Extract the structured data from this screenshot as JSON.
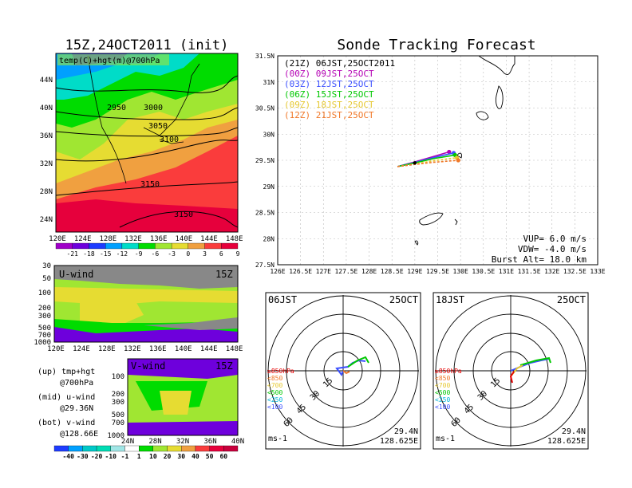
{
  "left_panel": {
    "title": "15Z,24OCT2011 (init)",
    "map_label": "temp(C)+hgt(m)@700hPa",
    "x_ticks": [
      "120E",
      "124E",
      "128E",
      "132E",
      "136E",
      "140E",
      "144E",
      "148E"
    ],
    "y_ticks": [
      "44N",
      "40N",
      "36N",
      "32N",
      "28N",
      "24N"
    ],
    "contour_labels": [
      "2950",
      "3000",
      "3050",
      "3100",
      "3150",
      "3150"
    ],
    "temp_colorbar": [
      "-21",
      "-18",
      "-15",
      "-12",
      "-9",
      "-6",
      "-3",
      "0",
      "3",
      "6",
      "9"
    ],
    "temp_colors": [
      "#a000c8",
      "#6e00dc",
      "#1e3cff",
      "#00a0ff",
      "#00dcc8",
      "#00dc00",
      "#a0e632",
      "#e6dc32",
      "#f0a040",
      "#fa3c3c",
      "#e6003c"
    ]
  },
  "wind_panels": {
    "u_label": "U-wind",
    "u_time": "15Z",
    "v_label": "V-wind",
    "v_time": "15Z",
    "u_x_ticks": [
      "120E",
      "124E",
      "128E",
      "132E",
      "136E",
      "140E",
      "144E",
      "148E"
    ],
    "v_x_ticks": [
      "24N",
      "28N",
      "32N",
      "36N",
      "40N"
    ],
    "p_ticks": [
      "30",
      "50",
      "100",
      "200",
      "300",
      "500",
      "700",
      "1000"
    ],
    "legend": [
      "(up) tmp+hgt",
      "@700hPa",
      "(mid) u-wind",
      "@29.36N",
      "(bot) v-wind",
      "@128.66E"
    ],
    "wind_colorbar": [
      "-40",
      "-30",
      "-20",
      "-10",
      "-1",
      "1",
      "10",
      "20",
      "30",
      "40",
      "50",
      "60"
    ],
    "wind_colors": [
      "#1e3cff",
      "#00a0ff",
      "#00c8c8",
      "#00dcb4",
      "#a0e6e6",
      "#ffffff",
      "#00dc00",
      "#a0e632",
      "#e6dc32",
      "#f0a040",
      "#fa3c3c",
      "#e6003c",
      "#c8003c"
    ]
  },
  "tracking": {
    "title": "Sonde Tracking Forecast",
    "header": "(21Z) 06JST,25OCT2011",
    "entries": [
      {
        "label": "(00Z) 09JST,25OCT",
        "color": "#b400b4"
      },
      {
        "label": "(03Z) 12JST,25OCT",
        "color": "#3c50ff"
      },
      {
        "label": "(06Z) 15JST,25OCT",
        "color": "#00c800"
      },
      {
        "label": "(09Z) 18JST,25OCT",
        "color": "#e6c832"
      },
      {
        "label": "(12Z) 21JST,25OCT",
        "color": "#f07828"
      }
    ],
    "x_ticks": [
      "126E",
      "126.5E",
      "127E",
      "127.5E",
      "128E",
      "128.5E",
      "129E",
      "129.5E",
      "130E",
      "130.5E",
      "131E",
      "131.5E",
      "132E",
      "132.5E",
      "133E"
    ],
    "y_ticks": [
      "31.5N",
      "31N",
      "30.5N",
      "30N",
      "29.5N",
      "29N",
      "28.5N",
      "28N",
      "27.5N"
    ],
    "info": [
      "VUP=  6.0  m/s",
      "VDW= -4.0  m/s",
      "Burst Alt= 18.0  km"
    ]
  },
  "hodographs": [
    {
      "time": "06JST",
      "date": "25OCT",
      "lat": "29.4N",
      "lon": "128.625E",
      "unit": "ms-1"
    },
    {
      "time": "18JST",
      "date": "25OCT",
      "lat": "29.4N",
      "lon": "128.625E",
      "unit": "ms-1"
    }
  ],
  "hodo_ring_labels": [
    "15",
    "30",
    "45",
    "60"
  ],
  "hodo_levels": [
    {
      "label": "≥850hPa",
      "color": "#e60000"
    },
    {
      "label": "<850",
      "color": "#f07828"
    },
    {
      "label": "<700",
      "color": "#e6c832"
    },
    {
      "label": "<500",
      "color": "#00c800"
    },
    {
      "label": "<250",
      "color": "#00b4dc"
    },
    {
      "label": "<100",
      "color": "#3c50ff"
    }
  ],
  "chart_data": [
    {
      "type": "line",
      "title": "Sonde Tracking Forecast",
      "xlim": [
        126,
        133
      ],
      "ylim": [
        27.5,
        31.5
      ],
      "series": [
        {
          "name": "(00Z) 09JST,25OCT",
          "x": [
            128.62,
            129.0,
            129.4,
            129.75
          ],
          "y": [
            29.38,
            29.47,
            29.57,
            29.66
          ]
        },
        {
          "name": "(03Z) 12JST,25OCT",
          "x": [
            128.62,
            129.0,
            129.4,
            129.85
          ],
          "y": [
            29.38,
            29.46,
            29.55,
            29.64
          ]
        },
        {
          "name": "(06Z) 15JST,25OCT",
          "x": [
            128.62,
            129.0,
            129.4,
            129.88
          ],
          "y": [
            29.38,
            29.45,
            29.53,
            29.6
          ]
        },
        {
          "name": "(09Z) 18JST,25OCT",
          "x": [
            128.62,
            129.0,
            129.4,
            129.92
          ],
          "y": [
            29.38,
            29.43,
            29.49,
            29.55
          ]
        },
        {
          "name": "(12Z) 21JST,25OCT",
          "x": [
            128.62,
            129.0,
            129.4,
            129.95
          ],
          "y": [
            29.38,
            29.42,
            29.46,
            29.5
          ]
        }
      ]
    }
  ]
}
